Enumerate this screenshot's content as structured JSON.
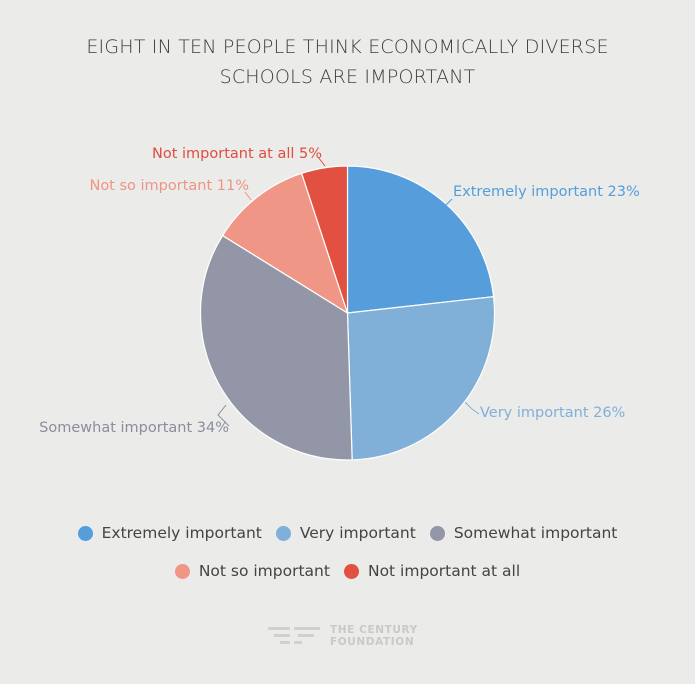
{
  "chart_data": {
    "type": "pie",
    "title_lines": [
      "EIGHT IN TEN PEOPLE THINK ECONOMICALLY DIVERSE",
      "SCHOOLS ARE IMPORTANT"
    ],
    "slices": [
      {
        "name": "Extremely important",
        "value": 23,
        "label": "Extremely important 23%",
        "color": "#559ddb",
        "label_color": "#559ddb"
      },
      {
        "name": "Very important",
        "value": 26,
        "label": "Very important 26%",
        "color": "#80afd8",
        "label_color": "#80afd8"
      },
      {
        "name": "Somewhat important",
        "value": 34,
        "label": "Somewhat important 34%",
        "color": "#9396a6",
        "label_color": "#8a8d9c"
      },
      {
        "name": "Not so important",
        "value": 11,
        "label": "Not so important 11%",
        "color": "#f09686",
        "label_color": "#ee9484"
      },
      {
        "name": "Not important at all",
        "value": 5,
        "label": "Not important at all 5%",
        "color": "#e15040",
        "label_color": "#df4d3f"
      }
    ],
    "legend_placement": "bottom"
  },
  "legend": {
    "row1": [
      {
        "label": "Extremely important",
        "color": "#559ddb"
      },
      {
        "label": "Very important",
        "color": "#80afd8"
      },
      {
        "label": "Somewhat important",
        "color": "#9396a6"
      }
    ],
    "row2": [
      {
        "label": "Not so important",
        "color": "#f09686"
      },
      {
        "label": "Not important at all",
        "color": "#e15040"
      }
    ]
  },
  "logo": {
    "line1": "THE CENTURY",
    "line2": "FOUNDATION"
  }
}
